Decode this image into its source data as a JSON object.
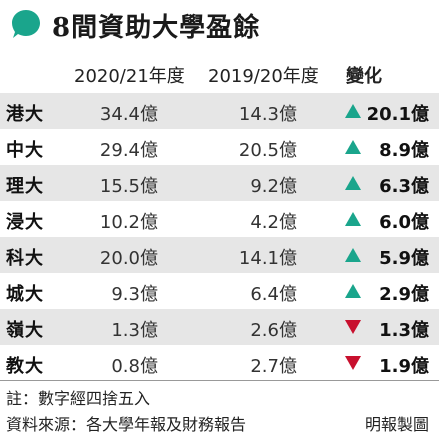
{
  "title": "8間資助大學盈餘",
  "colors": {
    "accent": "#1aa58c",
    "up": "#1aa58c",
    "down": "#c8102e",
    "shade": "#e6e6e6"
  },
  "headers": {
    "col_2021": "2020/21年度",
    "col_1920": "2019/20年度",
    "col_change": "變化"
  },
  "chart_data": {
    "type": "table",
    "title": "8間資助大學盈餘",
    "columns": [
      "",
      "2020/21年度",
      "2019/20年度",
      "變化"
    ],
    "rows": [
      {
        "uni": "港大",
        "v2021": "34.4億",
        "v1920": "14.3億",
        "direction": "up",
        "change": "20.1億"
      },
      {
        "uni": "中大",
        "v2021": "29.4億",
        "v1920": "20.5億",
        "direction": "up",
        "change": "8.9億"
      },
      {
        "uni": "理大",
        "v2021": "15.5億",
        "v1920": "9.2億",
        "direction": "up",
        "change": "6.3億"
      },
      {
        "uni": "浸大",
        "v2021": "10.2億",
        "v1920": "4.2億",
        "direction": "up",
        "change": "6.0億"
      },
      {
        "uni": "科大",
        "v2021": "20.0億",
        "v1920": "14.1億",
        "direction": "up",
        "change": "5.9億"
      },
      {
        "uni": "城大",
        "v2021": "9.3億",
        "v1920": "6.4億",
        "direction": "up",
        "change": "2.9億"
      },
      {
        "uni": "嶺大",
        "v2021": "1.3億",
        "v1920": "2.6億",
        "direction": "down",
        "change": "1.3億"
      },
      {
        "uni": "教大",
        "v2021": "0.8億",
        "v1920": "2.7億",
        "direction": "down",
        "change": "1.9億"
      }
    ]
  },
  "footer": {
    "note": "註：數字經四捨五入",
    "source": "資料來源：各大學年報及財務報告",
    "credit": "明報製圖"
  }
}
